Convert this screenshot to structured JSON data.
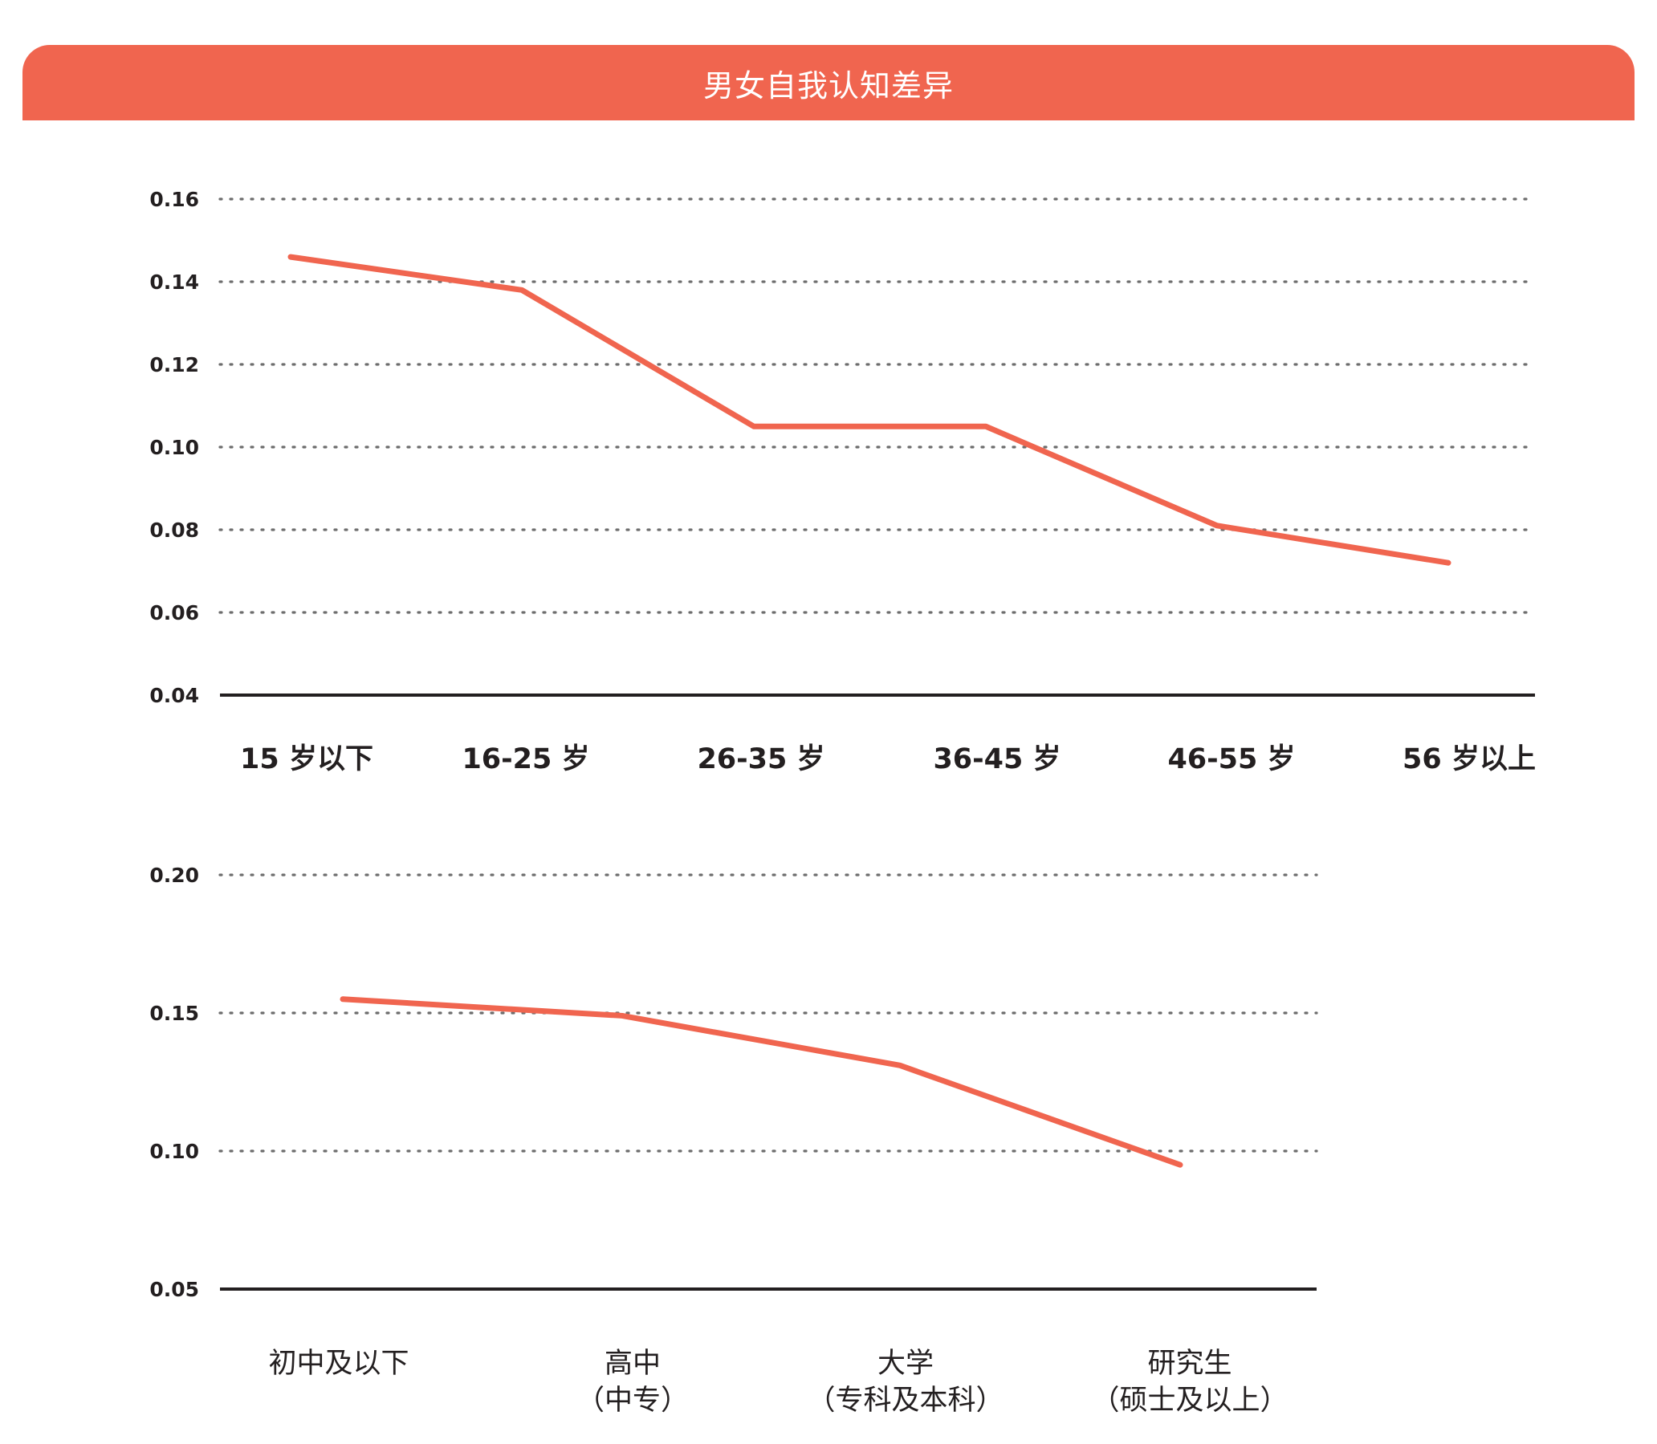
{
  "header": {
    "title": "男女自我认知差异"
  },
  "colors": {
    "accent": "#f0654f",
    "grid": "#6d6d6d",
    "axis": "#231f20"
  },
  "chart_data": [
    {
      "type": "line",
      "categories": [
        "15 岁以下",
        "16-25 岁",
        "26-35 岁",
        "36-45 岁",
        "46-55 岁",
        "56 岁以上"
      ],
      "values": [
        0.146,
        0.138,
        0.105,
        0.105,
        0.081,
        0.072
      ],
      "yticks": [
        "0.04",
        "0.06",
        "0.08",
        "0.10",
        "0.12",
        "0.14",
        "0.16"
      ],
      "ylim": [
        0.04,
        0.16
      ],
      "grid": true
    },
    {
      "type": "line",
      "categories": [
        [
          "初中及以下"
        ],
        [
          "高中",
          "（中专）"
        ],
        [
          "大学",
          "（专科及本科）"
        ],
        [
          "研究生",
          "（硕士及以上）"
        ]
      ],
      "values": [
        0.155,
        0.149,
        0.131,
        0.095
      ],
      "yticks": [
        "0.05",
        "0.10",
        "0.15",
        "0.20"
      ],
      "ylim": [
        0.05,
        0.2
      ],
      "grid": true
    }
  ]
}
